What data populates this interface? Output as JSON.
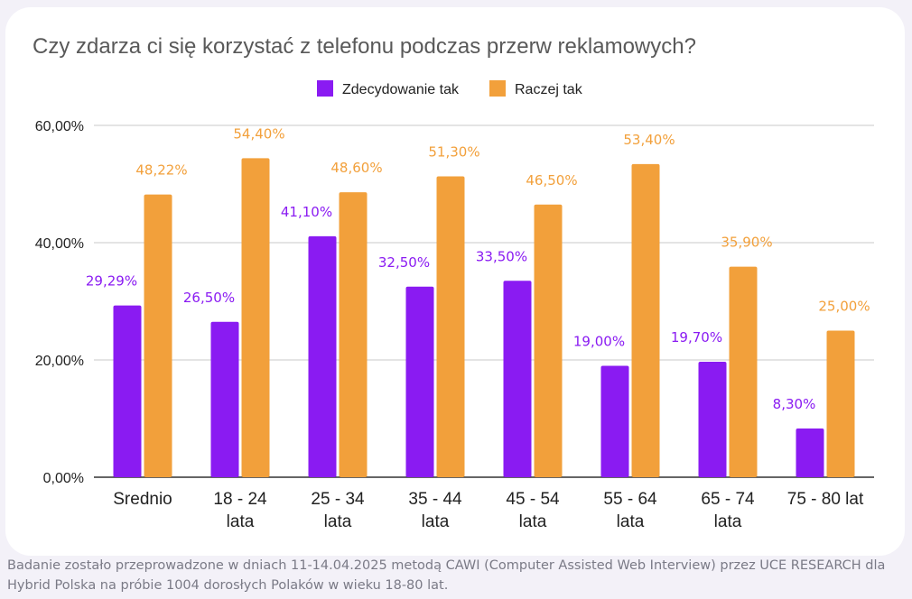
{
  "chart_data": {
    "type": "bar",
    "title": "Czy zdarza ci się korzystać z telefonu podczas przerw reklamowych?",
    "categories": [
      [
        "Srednio"
      ],
      [
        "18 - 24",
        "lata"
      ],
      [
        "25 - 34",
        "lata"
      ],
      [
        "35 - 44",
        "lata"
      ],
      [
        "45 - 54",
        "lata"
      ],
      [
        "55 - 64",
        "lata"
      ],
      [
        "65 - 74",
        "lata"
      ],
      [
        "75 - 80 lat"
      ]
    ],
    "series": [
      {
        "name": "Zdecydowanie tak",
        "color": "#8a1bf2",
        "values": [
          29.29,
          26.5,
          41.1,
          32.5,
          33.5,
          19.0,
          19.7,
          8.3
        ],
        "labels": [
          "29,29%",
          "26,50%",
          "41,10%",
          "32,50%",
          "33,50%",
          "19,00%",
          "19,70%",
          "8,30%"
        ]
      },
      {
        "name": "Raczej tak",
        "color": "#f2a03b",
        "values": [
          48.22,
          54.4,
          48.6,
          51.3,
          46.5,
          53.4,
          35.9,
          25.0
        ],
        "labels": [
          "48,22%",
          "54,40%",
          "48,60%",
          "51,30%",
          "46,50%",
          "53,40%",
          "35,90%",
          "25,00%"
        ]
      }
    ],
    "y_ticks": [
      {
        "value": 0,
        "label": "0,00%"
      },
      {
        "value": 20,
        "label": "20,00%"
      },
      {
        "value": 40,
        "label": "40,00%"
      },
      {
        "value": 60,
        "label": "60,00%"
      }
    ],
    "ylim": [
      0,
      60
    ],
    "grid": true,
    "legend_position": "top"
  },
  "footnote": "Badanie zostało przeprowadzone w dniach 11-14.04.2025 metodą CAWI (Computer Assisted Web Interview) przez UCE RESEARCH dla Hybrid Polska na próbie 1004 dorosłych Polaków w wieku 18-80 lat."
}
